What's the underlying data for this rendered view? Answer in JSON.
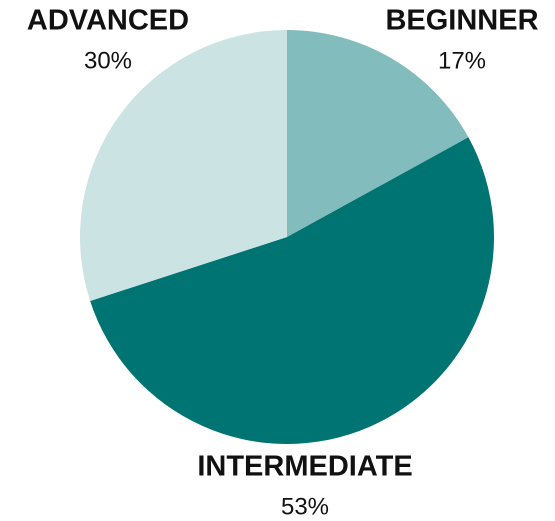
{
  "chart_data": {
    "type": "pie",
    "categories": [
      "BEGINNER",
      "INTERMEDIATE",
      "ADVANCED"
    ],
    "values": [
      17,
      53,
      30
    ],
    "value_labels": [
      "17%",
      "53%",
      "30%"
    ],
    "colors": [
      "#83bcbc",
      "#007473",
      "#cce3e4"
    ]
  }
}
